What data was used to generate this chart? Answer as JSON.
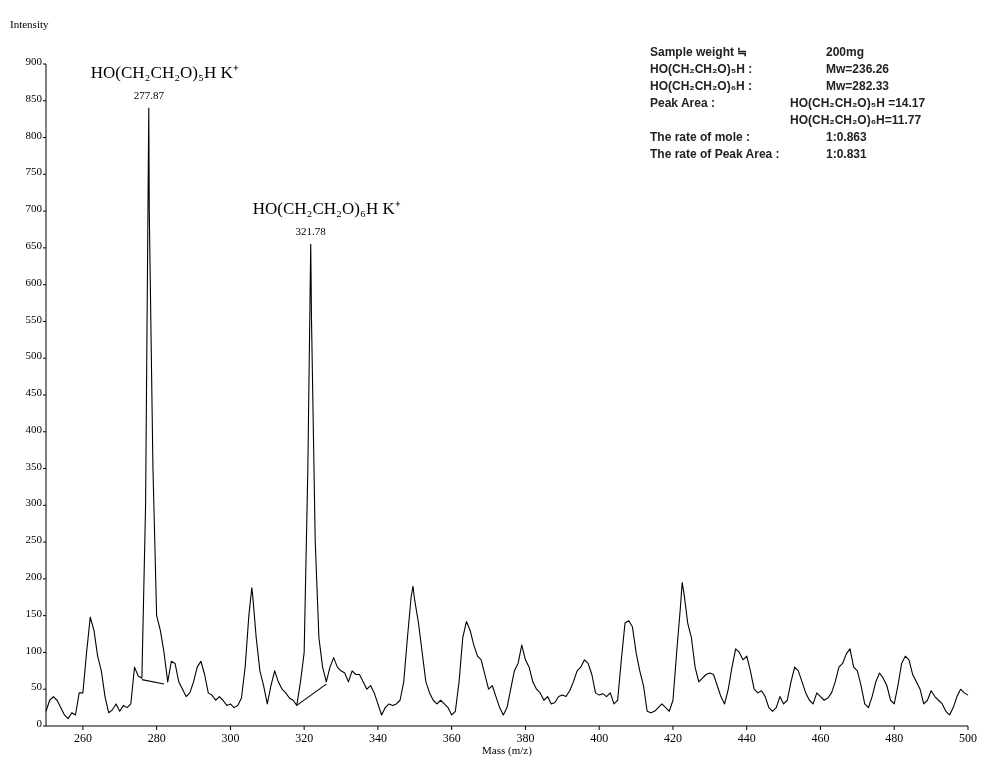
{
  "chart_data": {
    "type": "line",
    "xlabel": "Mass (m/z)",
    "ylabel": "Intensity",
    "xlim": [
      250,
      500
    ],
    "xticks": [
      260,
      280,
      300,
      320,
      340,
      360,
      380,
      400,
      420,
      440,
      460,
      480,
      500
    ],
    "ylim": [
      0,
      900
    ],
    "yticks": [
      0,
      50,
      100,
      150,
      200,
      250,
      300,
      350,
      400,
      450,
      500,
      550,
      600,
      650,
      700,
      750,
      800,
      850,
      900
    ],
    "marker": "none",
    "line_style": "solid",
    "series": [
      {
        "color": "#000000",
        "x": [
          250,
          251,
          252,
          253,
          255,
          256,
          257,
          258,
          259,
          260,
          261,
          262,
          263,
          264,
          265,
          266,
          267,
          268,
          269,
          270,
          271,
          272,
          273,
          274,
          275,
          276,
          277,
          277.87,
          278,
          279,
          280,
          281,
          282,
          283,
          284,
          285,
          286,
          288,
          289,
          290,
          291,
          292,
          293,
          294,
          295,
          296,
          297,
          298,
          299,
          300,
          301,
          302,
          303,
          304,
          305,
          305.8,
          306,
          307,
          308,
          309,
          310,
          311,
          312,
          313,
          314,
          315,
          316,
          317,
          318,
          319,
          320,
          321,
          321.78,
          322,
          323,
          324,
          325,
          326,
          327,
          328,
          329,
          330,
          331,
          332,
          333,
          334,
          335,
          336,
          337,
          338,
          339,
          340,
          341,
          342,
          343,
          344,
          345,
          346,
          347,
          348,
          349,
          349.5,
          350,
          351,
          352,
          353,
          354,
          355,
          356,
          357,
          358,
          359,
          360,
          361,
          362,
          363,
          364,
          365,
          366,
          367,
          368,
          369,
          370,
          371,
          372,
          373,
          374,
          375,
          376,
          377,
          378,
          379,
          380,
          381,
          382,
          383,
          384,
          385,
          386,
          387,
          388,
          389,
          390,
          391,
          392,
          393,
          394,
          395,
          396,
          397,
          398,
          399,
          400,
          401,
          402,
          403,
          404,
          405,
          406,
          407,
          408,
          409,
          410,
          411,
          412,
          413,
          414,
          415,
          416,
          417,
          418,
          419,
          420,
          421,
          422,
          422.5,
          423,
          424,
          425,
          426,
          427,
          428,
          429,
          430,
          431,
          432,
          433,
          434,
          435,
          436,
          437,
          438,
          439,
          440,
          441,
          442,
          443,
          444,
          445,
          446,
          447,
          448,
          449,
          450,
          451,
          452,
          453,
          454,
          455,
          456,
          457,
          458,
          459,
          460,
          461,
          462,
          463,
          464,
          465,
          466,
          467,
          468,
          469,
          470,
          471,
          472,
          473,
          474,
          475,
          476,
          477,
          478,
          479,
          480,
          481,
          482,
          483,
          484,
          485,
          486,
          487,
          488,
          489,
          490,
          491,
          492,
          493,
          494,
          495,
          496,
          497,
          498,
          499,
          500
        ],
        "values": [
          20,
          35,
          40,
          35,
          15,
          10,
          18,
          15,
          45,
          45,
          100,
          148,
          130,
          95,
          75,
          40,
          18,
          22,
          30,
          20,
          28,
          25,
          30,
          80,
          68,
          65,
          300,
          840,
          700,
          350,
          150,
          130,
          100,
          60,
          88,
          85,
          60,
          40,
          45,
          60,
          80,
          88,
          70,
          45,
          42,
          35,
          40,
          35,
          28,
          30,
          25,
          28,
          38,
          80,
          150,
          188,
          180,
          120,
          75,
          55,
          30,
          55,
          75,
          60,
          50,
          45,
          38,
          35,
          28,
          60,
          100,
          350,
          655,
          550,
          250,
          120,
          80,
          60,
          80,
          93,
          80,
          75,
          72,
          60,
          75,
          70,
          70,
          60,
          50,
          55,
          45,
          30,
          15,
          25,
          30,
          28,
          30,
          35,
          60,
          120,
          175,
          190,
          170,
          140,
          100,
          60,
          45,
          35,
          30,
          35,
          30,
          25,
          15,
          20,
          60,
          120,
          142,
          130,
          110,
          95,
          90,
          70,
          50,
          55,
          40,
          25,
          15,
          25,
          50,
          75,
          85,
          110,
          90,
          80,
          60,
          50,
          45,
          35,
          40,
          30,
          32,
          40,
          42,
          40,
          48,
          60,
          75,
          80,
          90,
          85,
          70,
          45,
          42,
          44,
          40,
          45,
          30,
          35,
          90,
          140,
          143,
          135,
          100,
          75,
          55,
          20,
          18,
          20,
          25,
          30,
          25,
          20,
          35,
          100,
          160,
          195,
          180,
          140,
          120,
          80,
          60,
          65,
          70,
          72,
          70,
          55,
          40,
          30,
          50,
          80,
          105,
          100,
          90,
          95,
          75,
          50,
          45,
          48,
          40,
          25,
          20,
          25,
          40,
          30,
          35,
          60,
          80,
          75,
          60,
          45,
          35,
          30,
          45,
          40,
          35,
          38,
          45,
          60,
          80,
          85,
          98,
          105,
          80,
          75,
          55,
          30,
          25,
          40,
          60,
          72,
          65,
          55,
          35,
          30,
          55,
          85,
          95,
          90,
          70,
          60,
          50,
          30,
          35,
          48,
          40,
          35,
          30,
          20,
          15,
          25,
          40,
          50,
          45,
          42
        ]
      },
      {
        "type": "line",
        "color": "#000000",
        "x": [
          276,
          282
        ],
        "values": [
          63,
          57
        ]
      },
      {
        "type": "line",
        "color": "#000000",
        "x": [
          318,
          326
        ],
        "values": [
          28,
          57
        ]
      }
    ],
    "annotations": [
      {
        "text": "277.87",
        "x": 277.87,
        "y": 840
      },
      {
        "text": "321.78",
        "x": 321.78,
        "y": 655
      },
      "HO(CH₂CH₂O)₅H K⁺",
      "HO(CH₂CH₂O)₆H K⁺",
      "Sample weight ≒",
      "200mg",
      "HO(CH₂CH₂O)₅H :",
      "Mw=236.26",
      "HO(CH₂CH₂O)₆H :",
      "Mw=282.33",
      "Peak Area :",
      "HO(CH₂CH₂O)₅H =14.17",
      "HO(CH₂CH₂O)₆H=11.77",
      "The rate of mole :",
      "1:0.863",
      "The rate of Peak Area :",
      "1:0.831"
    ]
  }
}
